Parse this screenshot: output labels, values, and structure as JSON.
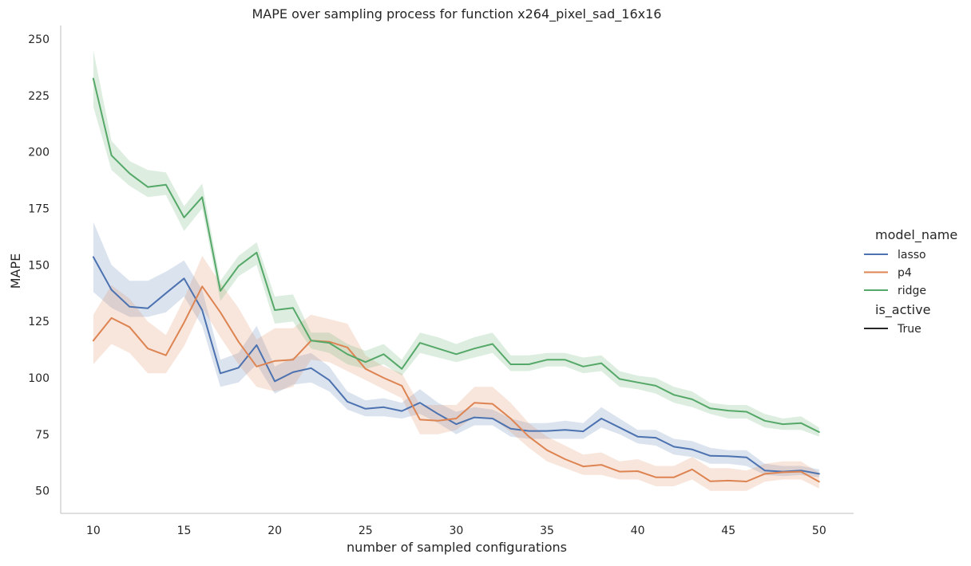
{
  "chart_data": {
    "type": "line",
    "title": "MAPE over sampling process for function x264_pixel_sad_16x16",
    "xlabel": "number of sampled configurations",
    "ylabel": "MAPE",
    "xlim": [
      8.2,
      51.9
    ],
    "ylim": [
      40,
      256
    ],
    "xticks": [
      10,
      15,
      20,
      25,
      30,
      35,
      40,
      45,
      50
    ],
    "yticks": [
      50,
      75,
      100,
      125,
      150,
      175,
      200,
      225,
      250
    ],
    "grid": false,
    "legend": {
      "placement": "right",
      "hue_title": "model_name",
      "style_title": "is_active",
      "style_entries": [
        "True"
      ]
    },
    "x": [
      10,
      11,
      12,
      13,
      14,
      15,
      16,
      17,
      18,
      19,
      20,
      21,
      22,
      23,
      24,
      25,
      26,
      27,
      28,
      29,
      30,
      31,
      32,
      33,
      34,
      35,
      36,
      37,
      38,
      39,
      40,
      41,
      42,
      43,
      44,
      45,
      46,
      47,
      48,
      49,
      50
    ],
    "series": [
      {
        "name": "lasso",
        "color": "#4c72b0",
        "values": [
          153.5,
          139,
          131.5,
          130.8,
          137.5,
          144,
          130,
          102,
          104.5,
          114.5,
          98.5,
          102.5,
          104.3,
          99,
          89.5,
          86.3,
          87,
          85.3,
          89,
          84,
          79.5,
          82.5,
          82,
          77.5,
          76.5,
          76.5,
          77,
          76.3,
          82,
          78,
          74,
          73.5,
          69.5,
          68.3,
          65.5,
          65.3,
          64.8,
          59,
          58.5,
          59,
          57.5
        ],
        "lower": [
          138,
          131,
          127,
          127,
          129,
          136,
          123,
          96,
          98,
          106,
          93,
          97,
          98,
          94,
          86,
          83,
          83,
          82,
          84,
          80,
          75,
          79,
          79,
          74,
          73,
          73,
          73,
          73,
          78,
          75,
          71,
          70,
          66,
          65,
          62,
          62,
          61,
          57,
          56.5,
          57,
          56
        ],
        "upper": [
          169,
          150,
          143,
          143,
          147,
          152,
          139,
          108,
          111,
          123,
          105,
          109,
          111,
          105,
          94,
          90,
          91,
          89,
          95,
          89,
          85,
          87,
          86,
          82,
          80,
          80,
          81,
          80,
          87,
          82,
          77,
          77,
          73,
          72,
          69,
          68,
          68,
          62,
          61,
          61,
          59.5
        ]
      },
      {
        "name": "p4",
        "color": "#dd8452",
        "values": [
          116.5,
          126.5,
          122.5,
          113,
          110,
          124.5,
          140.5,
          129,
          116,
          105,
          107.5,
          108,
          116.5,
          116,
          113.5,
          104,
          100,
          96.5,
          81.5,
          81,
          82,
          89,
          88.5,
          82,
          74,
          68,
          64,
          60.8,
          61.5,
          58.5,
          58.7,
          56,
          56,
          59.5,
          54.2,
          54.5,
          54.1,
          57.5,
          58.2,
          58.5,
          54
        ],
        "lower": [
          106,
          115,
          111,
          102,
          102,
          114,
          131,
          118,
          106,
          96,
          94,
          96,
          108,
          107,
          103,
          99,
          95,
          91,
          75,
          75,
          77,
          83,
          82,
          76,
          69,
          63,
          60,
          57,
          57,
          55,
          55,
          52,
          52,
          55,
          50,
          50,
          50,
          54,
          55,
          55,
          51
        ],
        "upper": [
          128,
          141,
          135,
          125,
          119,
          135,
          154,
          142,
          131,
          117,
          122,
          122,
          128,
          126,
          124,
          110,
          105,
          102,
          88,
          88,
          88,
          96,
          96,
          89,
          80,
          74,
          70,
          66,
          67,
          63,
          64,
          61,
          61,
          65,
          60,
          60,
          59,
          62,
          63,
          63,
          58
        ]
      },
      {
        "name": "ridge",
        "color": "#55a868",
        "values": [
          232.5,
          198.5,
          190.5,
          184.5,
          185.5,
          171,
          180,
          138.5,
          149.5,
          155.5,
          130,
          131,
          116.5,
          115.5,
          110.5,
          107,
          110.5,
          104,
          115.5,
          113,
          110.5,
          113,
          115,
          106,
          106,
          108,
          108,
          105,
          106.5,
          99.5,
          98,
          96.5,
          92.5,
          90.5,
          86.5,
          85.5,
          85,
          81,
          79.5,
          80,
          76
        ],
        "lower": [
          220,
          192,
          185,
          180,
          181,
          165,
          175,
          134,
          145,
          150,
          124,
          125,
          113,
          111,
          106,
          104,
          106,
          101,
          111,
          109,
          107,
          109,
          111,
          103,
          103,
          105,
          105,
          102,
          103,
          96,
          95,
          93,
          89,
          87,
          84,
          82,
          82,
          78,
          77,
          77,
          74
        ],
        "upper": [
          245,
          205,
          196,
          192,
          191,
          176,
          186,
          143,
          154,
          160,
          136,
          137,
          120,
          120,
          115,
          112,
          115,
          108,
          120,
          118,
          115,
          118,
          120,
          110,
          110,
          111,
          111,
          109,
          110,
          103,
          101,
          100,
          96,
          94,
          89,
          88,
          88,
          84,
          82,
          83,
          78
        ]
      }
    ]
  }
}
